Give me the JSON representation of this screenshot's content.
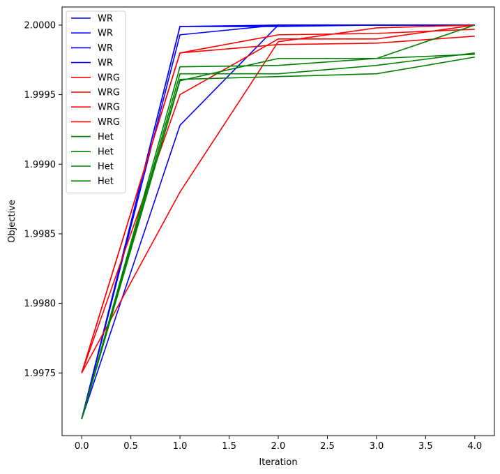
{
  "chart_data": {
    "type": "line",
    "title": "",
    "xlabel": "Iteration",
    "ylabel": "Objective",
    "xlim": [
      -0.2,
      4.2
    ],
    "ylim": [
      1.99705,
      2.00013
    ],
    "xticks": [
      0.0,
      0.5,
      1.0,
      1.5,
      2.0,
      2.5,
      3.0,
      3.5,
      4.0
    ],
    "xtick_labels": [
      "0.0",
      "0.5",
      "1.0",
      "1.5",
      "2.0",
      "2.5",
      "3.0",
      "3.5",
      "4.0"
    ],
    "yticks": [
      1.9975,
      1.998,
      1.9985,
      1.999,
      1.9995,
      2.0
    ],
    "ytick_labels": [
      "1.9975",
      "1.9980",
      "1.9985",
      "1.9990",
      "1.9995",
      "2.0000"
    ],
    "grid": false,
    "legend_position": "top-left",
    "x": [
      0,
      1,
      2,
      3,
      4
    ],
    "series": [
      {
        "name": "WR",
        "color": "#0000ff",
        "values": [
          1.99717,
          1.99999,
          1.99999,
          2.0,
          2.0
        ]
      },
      {
        "name": "WR",
        "color": "#0000ff",
        "values": [
          1.99717,
          1.99999,
          2.0,
          2.0,
          2.0
        ]
      },
      {
        "name": "WR",
        "color": "#0000ff",
        "values": [
          1.99717,
          1.99993,
          2.0,
          2.0,
          2.0
        ]
      },
      {
        "name": "WR",
        "color": "#0000ff",
        "values": [
          1.99717,
          1.99928,
          2.0,
          2.0,
          2.0
        ]
      },
      {
        "name": "WRG",
        "color": "#ff0000",
        "values": [
          1.9975,
          1.9998,
          1.99993,
          1.99994,
          1.99997
        ]
      },
      {
        "name": "WRG",
        "color": "#ff0000",
        "values": [
          1.9975,
          1.9998,
          1.99986,
          1.99987,
          1.99992
        ]
      },
      {
        "name": "WRG",
        "color": "#ff0000",
        "values": [
          1.9975,
          1.9995,
          1.9999,
          1.9999,
          2.0
        ]
      },
      {
        "name": "WRG",
        "color": "#ff0000",
        "values": [
          1.9975,
          1.9988,
          1.99988,
          1.99998,
          2.0
        ]
      },
      {
        "name": "Het",
        "color": "#008000",
        "values": [
          1.99717,
          1.9997,
          1.99971,
          1.99976,
          1.99979
        ]
      },
      {
        "name": "Het",
        "color": "#008000",
        "values": [
          1.99717,
          1.99965,
          1.99965,
          1.99971,
          1.9998
        ]
      },
      {
        "name": "Het",
        "color": "#008000",
        "values": [
          1.99717,
          1.99961,
          1.99963,
          1.99965,
          1.99977
        ]
      },
      {
        "name": "Het",
        "color": "#008000",
        "values": [
          1.99717,
          1.9996,
          1.99976,
          1.99976,
          2.0
        ]
      }
    ]
  }
}
